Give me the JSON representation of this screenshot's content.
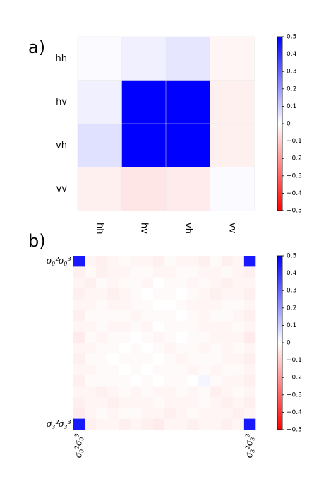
{
  "chart_data": [
    {
      "type": "heatmap",
      "label": "a)",
      "rows": [
        "hh",
        "hv",
        "vh",
        "vv"
      ],
      "categories": [
        "hh",
        "hv",
        "vh",
        "vv"
      ],
      "values": [
        [
          0.01,
          0.03,
          0.05,
          -0.02
        ],
        [
          0.03,
          0.5,
          0.5,
          -0.03
        ],
        [
          0.06,
          0.5,
          0.5,
          -0.03
        ],
        [
          -0.03,
          -0.05,
          -0.04,
          0.01
        ]
      ],
      "clim": [
        -0.5,
        0.5
      ],
      "cticks": [
        {
          "value": -0.5,
          "label": "−0.5"
        },
        {
          "value": -0.4,
          "label": "−0.4"
        },
        {
          "value": -0.3,
          "label": "−0.3"
        },
        {
          "value": -0.2,
          "label": "−0.2"
        },
        {
          "value": -0.1,
          "label": "−0.1"
        },
        0,
        0.1,
        0.2,
        0.3,
        0.4,
        0.5
      ],
      "colormap": "bwr"
    },
    {
      "type": "heatmap",
      "label": "b)",
      "rows": [
        "σ₀²σ₀³",
        null,
        null,
        null,
        null,
        null,
        null,
        null,
        null,
        null,
        null,
        null,
        null,
        null,
        null,
        "σ₃²σ₃³"
      ],
      "categories": [
        "σ₀²σ₀³",
        null,
        null,
        null,
        null,
        null,
        null,
        null,
        null,
        null,
        null,
        null,
        null,
        null,
        null,
        "σ₃²σ₃³"
      ],
      "values": [
        [
          0.45,
          -0.02,
          -0.03,
          -0.02,
          -0.01,
          -0.02,
          -0.02,
          -0.03,
          -0.01,
          -0.02,
          -0.02,
          -0.03,
          -0.01,
          -0.03,
          -0.02,
          0.45
        ],
        [
          -0.03,
          -0.01,
          -0.03,
          -0.02,
          -0.02,
          -0.01,
          -0.01,
          -0.02,
          -0.02,
          -0.01,
          -0.01,
          -0.02,
          -0.02,
          -0.01,
          -0.02,
          -0.03
        ],
        [
          -0.02,
          -0.03,
          -0.01,
          -0.02,
          -0.01,
          -0.01,
          -0.02,
          0,
          -0.01,
          -0.01,
          -0.02,
          -0.01,
          -0.02,
          -0.03,
          -0.02,
          -0.02
        ],
        [
          -0.03,
          -0.02,
          -0.02,
          -0.03,
          -0.02,
          -0.01,
          0,
          -0.01,
          -0.01,
          0,
          -0.01,
          -0.02,
          -0.03,
          -0.02,
          -0.02,
          -0.03
        ],
        [
          -0.02,
          -0.02,
          -0.01,
          -0.02,
          -0.02,
          -0.01,
          -0.01,
          0,
          0,
          -0.01,
          -0.02,
          -0.02,
          -0.02,
          -0.01,
          -0.01,
          -0.02
        ],
        [
          -0.03,
          -0.01,
          -0.01,
          -0.01,
          -0.01,
          -0.02,
          -0.01,
          -0.01,
          -0.01,
          0,
          -0.01,
          -0.02,
          -0.01,
          -0.01,
          -0.02,
          -0.03
        ],
        [
          -0.02,
          -0.02,
          -0.01,
          -0.02,
          -0.02,
          -0.01,
          -0.02,
          0,
          -0.01,
          -0.01,
          -0.01,
          -0.02,
          -0.02,
          -0.02,
          -0.01,
          -0.02
        ],
        [
          -0.04,
          -0.01,
          -0.02,
          -0.01,
          -0.01,
          0,
          -0.01,
          -0.02,
          -0.01,
          0,
          -0.01,
          -0.01,
          -0.02,
          -0.02,
          -0.02,
          -0.04
        ],
        [
          -0.02,
          -0.02,
          -0.01,
          -0.01,
          0,
          -0.01,
          0,
          -0.01,
          -0.02,
          -0.01,
          -0.01,
          -0.02,
          -0.01,
          -0.02,
          -0.01,
          -0.02
        ],
        [
          -0.03,
          -0.01,
          -0.01,
          0,
          -0.01,
          -0.01,
          -0.01,
          0,
          -0.01,
          -0.02,
          -0.01,
          -0.01,
          -0.01,
          -0.02,
          -0.02,
          -0.03
        ],
        [
          -0.02,
          -0.02,
          -0.01,
          -0.01,
          0,
          -0.01,
          0,
          -0.01,
          -0.01,
          -0.01,
          -0.02,
          -0.01,
          -0.02,
          -0.01,
          -0.01,
          -0.02
        ],
        [
          -0.03,
          -0.01,
          -0.01,
          -0.01,
          -0.01,
          0,
          -0.01,
          0,
          -0.01,
          -0.01,
          0,
          0.02,
          -0.01,
          -0.02,
          -0.02,
          -0.03
        ],
        [
          -0.02,
          -0.02,
          -0.03,
          -0.02,
          -0.01,
          -0.02,
          -0.01,
          -0.02,
          -0.02,
          -0.01,
          -0.02,
          -0.01,
          -0.03,
          -0.02,
          -0.01,
          -0.02
        ],
        [
          -0.03,
          -0.02,
          -0.02,
          -0.03,
          -0.02,
          -0.02,
          -0.02,
          -0.01,
          -0.02,
          -0.02,
          -0.02,
          -0.01,
          -0.02,
          -0.03,
          -0.02,
          -0.03
        ],
        [
          -0.04,
          -0.02,
          -0.01,
          -0.02,
          -0.01,
          -0.01,
          -0.02,
          -0.02,
          -0.03,
          -0.02,
          -0.01,
          -0.02,
          -0.02,
          -0.02,
          -0.03,
          -0.02
        ],
        [
          0.45,
          -0.03,
          -0.02,
          -0.02,
          -0.03,
          -0.02,
          -0.03,
          -0.04,
          -0.02,
          -0.02,
          -0.03,
          -0.02,
          -0.02,
          -0.03,
          -0.02,
          0.45
        ]
      ],
      "clim": [
        -0.5,
        0.5
      ],
      "cticks": [
        {
          "value": -0.5,
          "label": "−0.5"
        },
        {
          "value": -0.4,
          "label": "−0.4"
        },
        {
          "value": -0.3,
          "label": "−0.3"
        },
        {
          "value": -0.2,
          "label": "−0.2"
        },
        {
          "value": -0.1,
          "label": "−0.1"
        },
        0,
        0.1,
        0.2,
        0.3,
        0.4,
        0.5
      ],
      "colormap": "bwr"
    }
  ]
}
